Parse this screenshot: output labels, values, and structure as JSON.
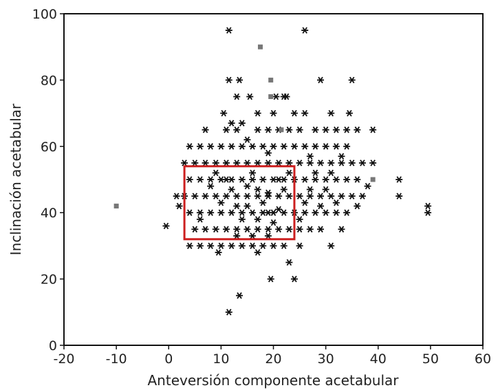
{
  "chart_data": {
    "type": "scatter",
    "xlabel": "Anteversión componente acetabular",
    "ylabel": "Inclinación acetabular",
    "xlim": [
      -20,
      60
    ],
    "ylim": [
      0,
      100
    ],
    "x_ticks": [
      -20,
      -10,
      0,
      10,
      20,
      30,
      40,
      50,
      60
    ],
    "y_ticks": [
      0,
      20,
      40,
      60,
      80,
      100
    ],
    "grid": false,
    "marker_color": "#111111",
    "outlier_color": "#777777",
    "highlight_box": {
      "x": [
        3,
        24
      ],
      "y": [
        32,
        54
      ],
      "color": "#cc1f1f"
    },
    "series": [
      {
        "marker": "asterisk",
        "points": [
          [
            11.5,
            95
          ],
          [
            26,
            95
          ],
          [
            11.5,
            80
          ],
          [
            13.5,
            80
          ],
          [
            22.5,
            75
          ],
          [
            29,
            80
          ],
          [
            35,
            80
          ],
          [
            10.5,
            70
          ],
          [
            13,
            75
          ],
          [
            15.5,
            75
          ],
          [
            20.5,
            75
          ],
          [
            22,
            75
          ],
          [
            17,
            70
          ],
          [
            20,
            70
          ],
          [
            24,
            70
          ],
          [
            26,
            70
          ],
          [
            31,
            70
          ],
          [
            34.5,
            70
          ],
          [
            12,
            67
          ],
          [
            14,
            67
          ],
          [
            21,
            65
          ],
          [
            7,
            65
          ],
          [
            11,
            65
          ],
          [
            13,
            65
          ],
          [
            17,
            65
          ],
          [
            19,
            65
          ],
          [
            23,
            65
          ],
          [
            25,
            65
          ],
          [
            28,
            65
          ],
          [
            30,
            65
          ],
          [
            32,
            65
          ],
          [
            34,
            65
          ],
          [
            36,
            65
          ],
          [
            39,
            65
          ],
          [
            4,
            60
          ],
          [
            6,
            60
          ],
          [
            8,
            60
          ],
          [
            10,
            60
          ],
          [
            12,
            60
          ],
          [
            14,
            60
          ],
          [
            16,
            60
          ],
          [
            18,
            60
          ],
          [
            20,
            60
          ],
          [
            22,
            60
          ],
          [
            24,
            60
          ],
          [
            26,
            60
          ],
          [
            28,
            60
          ],
          [
            30,
            60
          ],
          [
            32,
            60
          ],
          [
            34,
            60
          ],
          [
            15,
            62
          ],
          [
            19,
            58
          ],
          [
            27,
            57
          ],
          [
            33,
            57
          ],
          [
            3,
            55
          ],
          [
            5,
            55
          ],
          [
            7,
            55
          ],
          [
            9,
            55
          ],
          [
            11,
            55
          ],
          [
            13,
            55
          ],
          [
            15,
            55
          ],
          [
            17,
            55
          ],
          [
            19,
            55
          ],
          [
            21,
            55
          ],
          [
            23,
            55
          ],
          [
            25,
            55
          ],
          [
            27,
            55
          ],
          [
            29,
            55
          ],
          [
            31,
            55
          ],
          [
            33,
            55
          ],
          [
            35,
            55
          ],
          [
            37,
            55
          ],
          [
            39,
            55
          ],
          [
            4,
            50
          ],
          [
            6,
            50
          ],
          [
            8,
            50
          ],
          [
            10,
            50
          ],
          [
            12,
            50
          ],
          [
            14,
            50
          ],
          [
            16,
            50
          ],
          [
            18,
            50
          ],
          [
            20,
            50
          ],
          [
            22,
            50
          ],
          [
            24,
            50
          ],
          [
            26,
            50
          ],
          [
            28,
            50
          ],
          [
            30,
            50
          ],
          [
            32,
            50
          ],
          [
            34,
            50
          ],
          [
            36,
            50
          ],
          [
            44,
            50
          ],
          [
            3,
            45
          ],
          [
            5,
            45
          ],
          [
            7,
            45
          ],
          [
            9,
            45
          ],
          [
            11,
            45
          ],
          [
            13,
            45
          ],
          [
            15,
            45
          ],
          [
            17,
            45
          ],
          [
            19,
            45
          ],
          [
            21,
            45
          ],
          [
            23,
            45
          ],
          [
            25,
            45
          ],
          [
            27,
            45
          ],
          [
            29,
            45
          ],
          [
            31,
            45
          ],
          [
            33,
            45
          ],
          [
            35,
            45
          ],
          [
            37,
            45
          ],
          [
            44,
            45
          ],
          [
            1.5,
            45
          ],
          [
            4,
            40
          ],
          [
            6,
            40
          ],
          [
            8,
            40
          ],
          [
            10,
            40
          ],
          [
            12,
            40
          ],
          [
            14,
            40
          ],
          [
            16,
            40
          ],
          [
            18,
            40
          ],
          [
            20,
            40
          ],
          [
            22,
            40
          ],
          [
            24,
            40
          ],
          [
            26,
            40
          ],
          [
            28,
            40
          ],
          [
            30,
            40
          ],
          [
            32,
            40
          ],
          [
            34,
            40
          ],
          [
            49.5,
            42
          ],
          [
            49.5,
            40
          ],
          [
            5,
            35
          ],
          [
            7,
            35
          ],
          [
            9,
            35
          ],
          [
            11,
            35
          ],
          [
            13,
            35
          ],
          [
            15,
            35
          ],
          [
            17,
            35
          ],
          [
            19,
            35
          ],
          [
            21,
            35
          ],
          [
            23,
            35
          ],
          [
            25,
            35
          ],
          [
            27,
            35
          ],
          [
            29,
            35
          ],
          [
            33,
            35
          ],
          [
            4,
            30
          ],
          [
            6,
            30
          ],
          [
            8,
            30
          ],
          [
            10,
            30
          ],
          [
            12,
            30
          ],
          [
            14,
            30
          ],
          [
            16,
            30
          ],
          [
            18,
            30
          ],
          [
            20,
            30
          ],
          [
            22,
            30
          ],
          [
            25,
            30
          ],
          [
            31,
            30
          ],
          [
            -0.5,
            36
          ],
          [
            9.5,
            28
          ],
          [
            17,
            28
          ],
          [
            23,
            25
          ],
          [
            19.5,
            20
          ],
          [
            24,
            20
          ],
          [
            13.5,
            15
          ],
          [
            11.5,
            10
          ],
          [
            8,
            48
          ],
          [
            10,
            43
          ],
          [
            12,
            47
          ],
          [
            14,
            38
          ],
          [
            16,
            52
          ],
          [
            18,
            43
          ],
          [
            20,
            37
          ],
          [
            22,
            47
          ],
          [
            26,
            43
          ],
          [
            28,
            52
          ],
          [
            30,
            47
          ],
          [
            32,
            43
          ],
          [
            6,
            38
          ],
          [
            9,
            52
          ],
          [
            13,
            42
          ],
          [
            15,
            48
          ],
          [
            17,
            38
          ],
          [
            19,
            46
          ],
          [
            21,
            41
          ],
          [
            23,
            52
          ],
          [
            25,
            38
          ],
          [
            27,
            47
          ],
          [
            29,
            42
          ],
          [
            31,
            52
          ],
          [
            36,
            42
          ],
          [
            2,
            42
          ],
          [
            38,
            48
          ],
          [
            11,
            50
          ],
          [
            15,
            42
          ],
          [
            17,
            47
          ],
          [
            19,
            40
          ],
          [
            21,
            50
          ],
          [
            13,
            33
          ],
          [
            16,
            33
          ],
          [
            19,
            33
          ]
        ]
      },
      {
        "marker": "square",
        "points": [
          [
            -10,
            42
          ],
          [
            17.5,
            90
          ],
          [
            19.5,
            80
          ],
          [
            19.5,
            75
          ],
          [
            21.5,
            65
          ],
          [
            39,
            50
          ]
        ]
      }
    ]
  }
}
